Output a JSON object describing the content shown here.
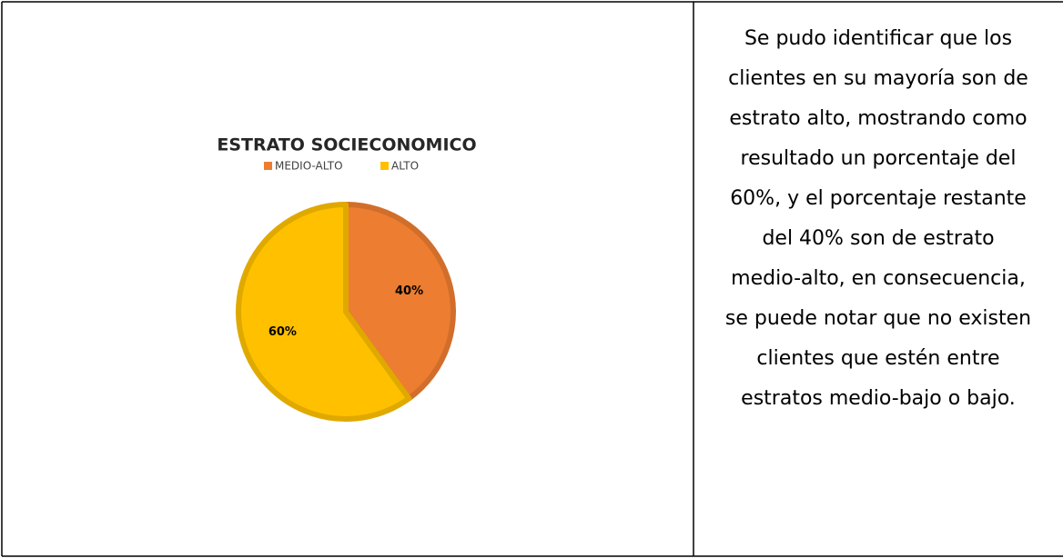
{
  "chart_data": {
    "type": "pie",
    "title": "ESTRATO SOCIECONOMICO",
    "categories": [
      "MEDIO-ALTO",
      "ALTO"
    ],
    "values": [
      40,
      60
    ],
    "value_labels": [
      "40%",
      "60%"
    ],
    "colors": [
      "#ED7D31",
      "#FFC000"
    ],
    "legend": "top"
  },
  "description": {
    "lines": [
      "Se pudo identificar que los",
      "clientes en su mayoría son de",
      "estrato alto, mostrando como",
      "resultado un porcentaje del",
      "60%, y el porcentaje restante",
      "del 40% son de estrato",
      "medio-alto, en consecuencia,",
      "se puede notar que no existen",
      "clientes que estén entre",
      "estratos medio-bajo o bajo."
    ]
  }
}
